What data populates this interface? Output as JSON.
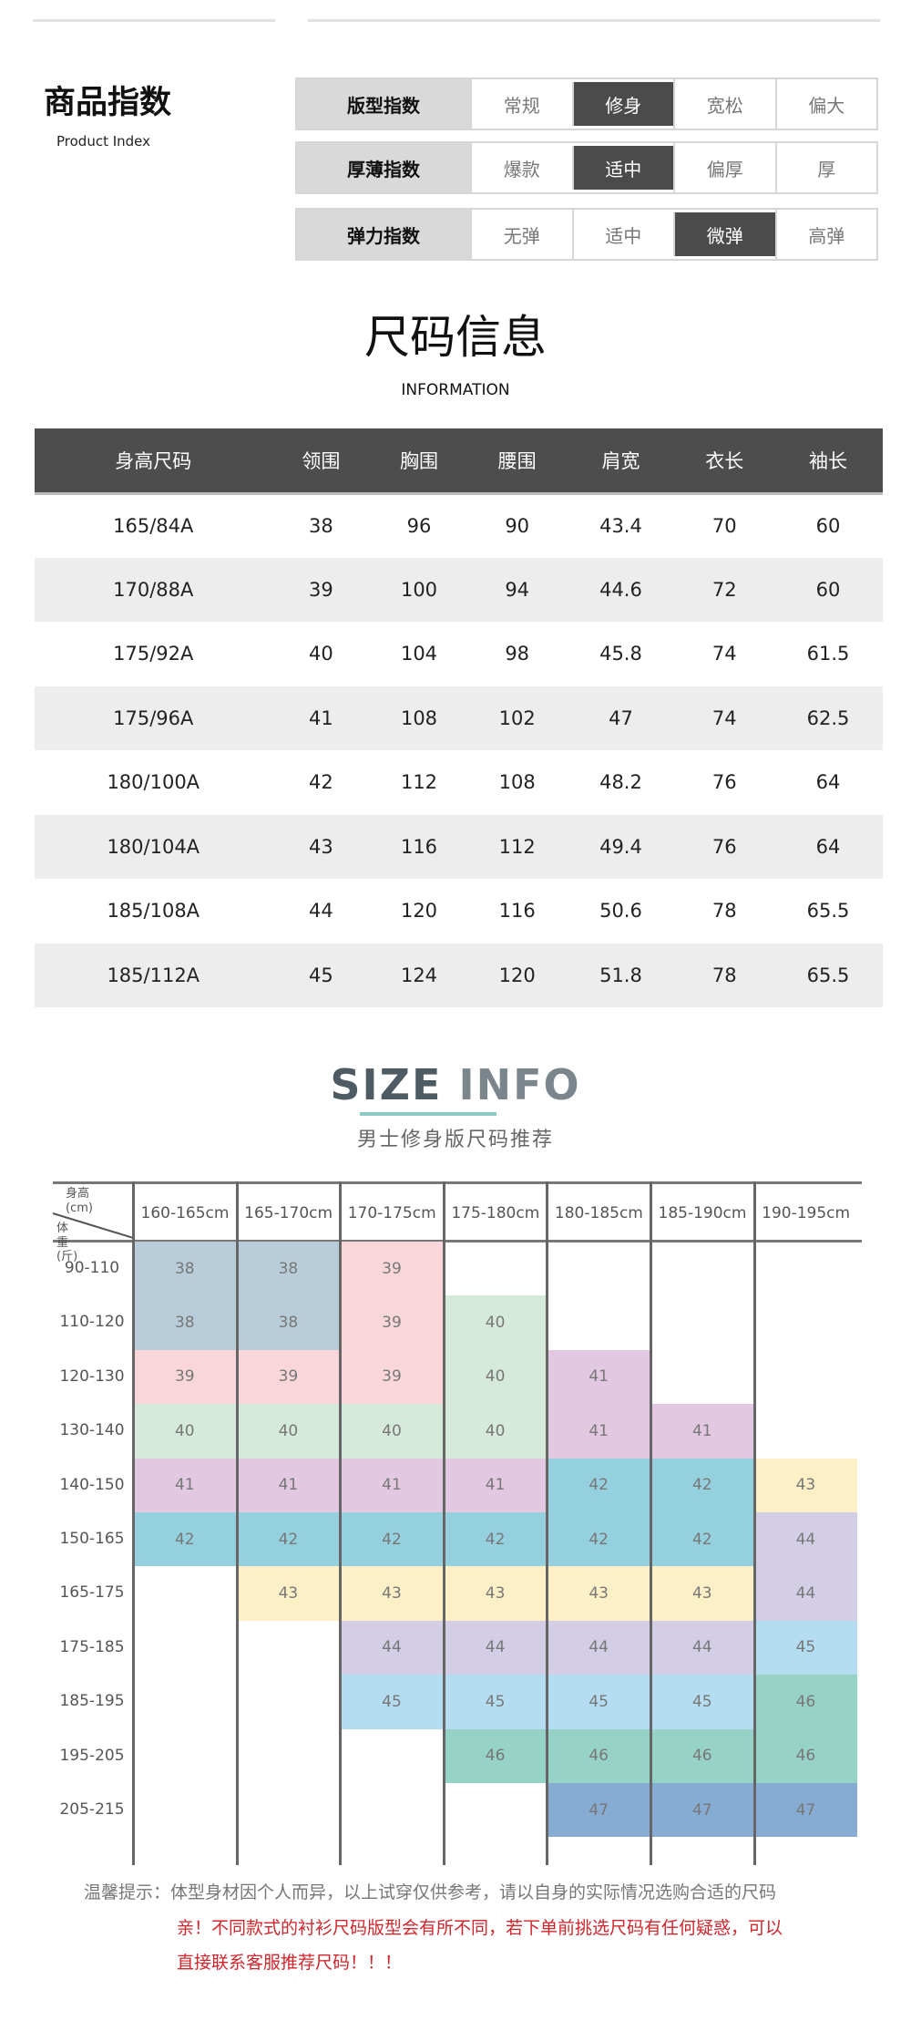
{
  "product_index": {
    "title": "商品指数",
    "subtitle": "Product Index",
    "rows": [
      {
        "label": "版型指数",
        "options": [
          "常规",
          "修身",
          "宽松",
          "偏大"
        ],
        "selected": 1
      },
      {
        "label": "厚薄指数",
        "options": [
          "爆款",
          "适中",
          "偏厚",
          "厚"
        ],
        "selected": 1
      },
      {
        "label": "弹力指数",
        "options": [
          "无弹",
          "适中",
          "微弹",
          "高弹"
        ],
        "selected": 2
      }
    ]
  },
  "size_info": {
    "title": "尺码信息",
    "subtitle": "INFORMATION",
    "headers": [
      "身高尺码",
      "领围",
      "胸围",
      "腰围",
      "肩宽",
      "衣长",
      "袖长"
    ],
    "rows": [
      [
        "165/84A",
        "38",
        "96",
        "90",
        "43.4",
        "70",
        "60"
      ],
      [
        "170/88A",
        "39",
        "100",
        "94",
        "44.6",
        "72",
        "60"
      ],
      [
        "175/92A",
        "40",
        "104",
        "98",
        "45.8",
        "74",
        "61.5"
      ],
      [
        "175/96A",
        "41",
        "108",
        "102",
        "47",
        "74",
        "62.5"
      ],
      [
        "180/100A",
        "42",
        "112",
        "108",
        "48.2",
        "76",
        "64"
      ],
      [
        "180/104A",
        "43",
        "116",
        "112",
        "49.4",
        "76",
        "64"
      ],
      [
        "185/108A",
        "44",
        "120",
        "116",
        "50.6",
        "78",
        "65.5"
      ],
      [
        "185/112A",
        "45",
        "124",
        "120",
        "51.8",
        "78",
        "65.5"
      ]
    ]
  },
  "recommend": {
    "title_a": "SIZE ",
    "title_b": "INFO",
    "subtitle": "男士修身版尺码推荐",
    "corner_top": "身高(cm)",
    "corner_bottom": "体重(斤)",
    "heights": [
      "160-165cm",
      "165-170cm",
      "170-175cm",
      "175-180cm",
      "180-185cm",
      "185-190cm",
      "190-195cm"
    ],
    "weights": [
      "90-110",
      "110-120",
      "120-130",
      "130-140",
      "140-150",
      "150-165",
      "165-175",
      "175-185",
      "185-195",
      "195-205",
      "205-215"
    ],
    "columns": [
      [
        "38",
        "38",
        "39",
        "40",
        "41",
        "42",
        "",
        "",
        "",
        "",
        ""
      ],
      [
        "38",
        "38",
        "39",
        "40",
        "41",
        "42",
        "43",
        "",
        "",
        "",
        ""
      ],
      [
        "39",
        "39",
        "39",
        "40",
        "41",
        "42",
        "43",
        "44",
        "45",
        "",
        ""
      ],
      [
        "",
        "40",
        "40",
        "40",
        "41",
        "42",
        "43",
        "44",
        "45",
        "46",
        ""
      ],
      [
        "",
        "",
        "41",
        "41",
        "42",
        "42",
        "43",
        "44",
        "45",
        "46",
        "47"
      ],
      [
        "",
        "",
        "",
        "41",
        "42",
        "42",
        "43",
        "44",
        "45",
        "46",
        "47"
      ],
      [
        "",
        "",
        "",
        "",
        "43",
        "44",
        "44",
        "45",
        "46",
        "46",
        "47"
      ]
    ],
    "colors": {
      "38": "#b8cdd9",
      "39": "#f8d6da",
      "40": "#d6eadc",
      "41": "#e2c9e1",
      "42": "#94d0de",
      "43": "#fdf0c6",
      "44": "#d3cee6",
      "45": "#b4ddf2",
      "46": "#96d3c6",
      "47": "#87acd3"
    }
  },
  "notes": {
    "line1": "温馨提示：体型身材因个人而异，以上试穿仅供参考，请以自身的实际情况选购合适的尺码",
    "line2": "亲！不同款式的衬衫尺码版型会有所不同，若下单前挑选尺码有任何疑惑，可以",
    "line3": "直接联系客服推荐尺码！！！",
    "red": "#d0262c"
  }
}
